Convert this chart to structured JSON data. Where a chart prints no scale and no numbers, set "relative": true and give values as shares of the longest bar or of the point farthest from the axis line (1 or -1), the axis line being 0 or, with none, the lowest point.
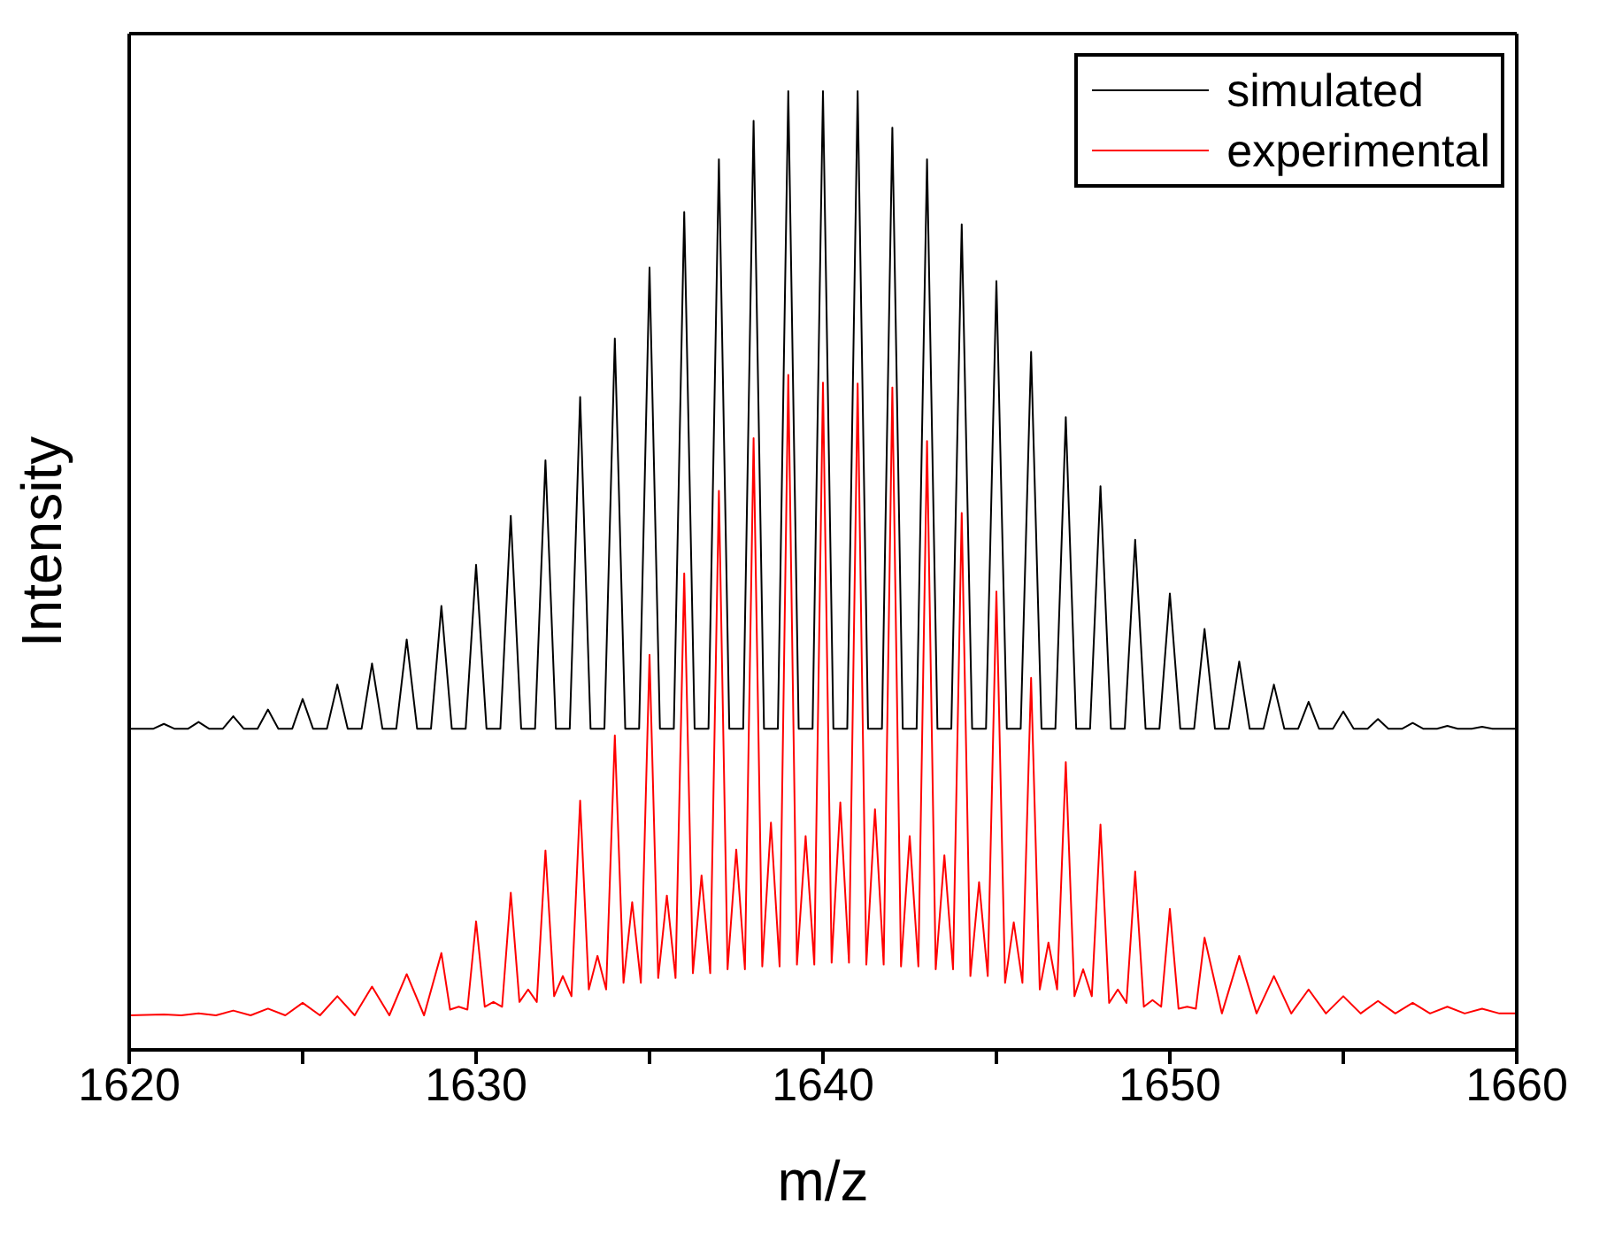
{
  "chart_data": {
    "type": "line",
    "xlabel": "m/z",
    "ylabel": "Intensity",
    "relative": true,
    "xlim": [
      1620,
      1660
    ],
    "xticks": [
      1620,
      {
        "value": 1625,
        "label": null
      },
      1630,
      {
        "value": 1635,
        "label": null
      },
      1640,
      {
        "value": 1645,
        "label": null
      },
      1650,
      {
        "value": 1655,
        "label": null
      },
      1660
    ],
    "tick_labels": "x",
    "grid": false,
    "legend": "top right",
    "marker": "none",
    "line_style": "solid",
    "series": [
      {
        "name": "simulated",
        "color": "#000000",
        "x": [
          1620,
          1620.7,
          1621,
          1621.3,
          1621.7,
          1622,
          1622.3,
          1622.7,
          1623,
          1623.3,
          1623.7,
          1624,
          1624.3,
          1624.7,
          1625,
          1625.3,
          1625.7,
          1626,
          1626.3,
          1626.7,
          1627,
          1627.3,
          1627.7,
          1628,
          1628.3,
          1628.7,
          1629,
          1629.3,
          1629.7,
          1630,
          1630.3,
          1630.7,
          1631,
          1631.3,
          1631.7,
          1632,
          1632.3,
          1632.7,
          1633,
          1633.3,
          1633.7,
          1634,
          1634.3,
          1634.7,
          1635,
          1635.3,
          1635.7,
          1636,
          1636.3,
          1636.7,
          1637,
          1637.3,
          1637.7,
          1638,
          1638.3,
          1638.7,
          1639,
          1639.3,
          1639.7,
          1640,
          1640.3,
          1640.7,
          1641,
          1641.3,
          1641.7,
          1642,
          1642.3,
          1642.7,
          1643,
          1643.3,
          1643.7,
          1644,
          1644.3,
          1644.7,
          1645,
          1645.3,
          1645.7,
          1646,
          1646.3,
          1646.7,
          1647,
          1647.3,
          1647.7,
          1648,
          1648.3,
          1648.7,
          1649,
          1649.3,
          1649.7,
          1650,
          1650.3,
          1650.7,
          1651,
          1651.3,
          1651.7,
          1652,
          1652.3,
          1652.7,
          1653,
          1653.3,
          1653.7,
          1654,
          1654.3,
          1654.7,
          1655,
          1655.3,
          1655.7,
          1656,
          1656.3,
          1656.7,
          1657,
          1657.3,
          1657.7,
          1658,
          1658.3,
          1658.7,
          1659,
          1659.3,
          1660
        ],
        "values": [
          0.335,
          0.335,
          0.34,
          0.335,
          0.335,
          0.342,
          0.335,
          0.335,
          0.348,
          0.335,
          0.335,
          0.355,
          0.335,
          0.335,
          0.366,
          0.335,
          0.335,
          0.381,
          0.335,
          0.335,
          0.403,
          0.335,
          0.335,
          0.428,
          0.335,
          0.335,
          0.463,
          0.335,
          0.335,
          0.506,
          0.335,
          0.335,
          0.557,
          0.335,
          0.335,
          0.615,
          0.335,
          0.335,
          0.681,
          0.335,
          0.335,
          0.742,
          0.335,
          0.335,
          0.816,
          0.335,
          0.335,
          0.874,
          0.335,
          0.335,
          0.929,
          0.335,
          0.335,
          0.969,
          0.335,
          0.335,
          1.0,
          0.335,
          0.335,
          1.0,
          0.335,
          0.335,
          1.0,
          0.335,
          0.335,
          0.962,
          0.335,
          0.335,
          0.929,
          0.335,
          0.335,
          0.861,
          0.335,
          0.335,
          0.802,
          0.335,
          0.335,
          0.728,
          0.335,
          0.335,
          0.66,
          0.335,
          0.335,
          0.588,
          0.335,
          0.335,
          0.532,
          0.335,
          0.335,
          0.476,
          0.335,
          0.335,
          0.439,
          0.335,
          0.335,
          0.405,
          0.335,
          0.335,
          0.381,
          0.335,
          0.335,
          0.363,
          0.335,
          0.335,
          0.353,
          0.335,
          0.335,
          0.345,
          0.335,
          0.335,
          0.341,
          0.335,
          0.335,
          0.338,
          0.335,
          0.335,
          0.337,
          0.335,
          0.335
        ]
      },
      {
        "name": "experimental",
        "color": "#ff0000",
        "x": [
          1620,
          1621,
          1621.5,
          1622,
          1622.5,
          1623,
          1623.5,
          1624,
          1624.5,
          1625,
          1625.5,
          1626,
          1626.5,
          1627,
          1627.5,
          1628,
          1628.5,
          1629,
          1629.25,
          1629.5,
          1629.75,
          1630,
          1630.25,
          1630.5,
          1630.75,
          1631,
          1631.25,
          1631.5,
          1631.75,
          1632,
          1632.25,
          1632.5,
          1632.75,
          1633,
          1633.25,
          1633.5,
          1633.75,
          1634,
          1634.25,
          1634.5,
          1634.75,
          1635,
          1635.25,
          1635.5,
          1635.75,
          1636,
          1636.25,
          1636.5,
          1636.75,
          1637,
          1637.25,
          1637.5,
          1637.75,
          1638,
          1638.25,
          1638.5,
          1638.75,
          1639,
          1639.25,
          1639.5,
          1639.75,
          1640,
          1640.25,
          1640.5,
          1640.75,
          1641,
          1641.25,
          1641.5,
          1641.75,
          1642,
          1642.25,
          1642.5,
          1642.75,
          1643,
          1643.25,
          1643.5,
          1643.75,
          1644,
          1644.25,
          1644.5,
          1644.75,
          1645,
          1645.25,
          1645.5,
          1645.75,
          1646,
          1646.25,
          1646.5,
          1646.75,
          1647,
          1647.25,
          1647.5,
          1647.75,
          1648,
          1648.25,
          1648.5,
          1648.75,
          1649,
          1649.25,
          1649.5,
          1649.75,
          1650,
          1650.25,
          1650.5,
          1650.75,
          1651,
          1651.5,
          1652,
          1652.5,
          1653,
          1653.5,
          1654,
          1654.5,
          1655,
          1655.5,
          1656,
          1656.5,
          1657,
          1657.5,
          1658,
          1658.5,
          1659,
          1659.5,
          1660
        ],
        "values": [
          0.036,
          0.037,
          0.036,
          0.038,
          0.036,
          0.041,
          0.036,
          0.043,
          0.036,
          0.049,
          0.036,
          0.056,
          0.036,
          0.066,
          0.036,
          0.079,
          0.036,
          0.101,
          0.042,
          0.045,
          0.042,
          0.134,
          0.045,
          0.05,
          0.045,
          0.164,
          0.05,
          0.063,
          0.05,
          0.208,
          0.056,
          0.077,
          0.056,
          0.26,
          0.063,
          0.098,
          0.063,
          0.328,
          0.07,
          0.154,
          0.07,
          0.412,
          0.075,
          0.161,
          0.075,
          0.497,
          0.08,
          0.182,
          0.08,
          0.583,
          0.084,
          0.209,
          0.084,
          0.638,
          0.087,
          0.237,
          0.087,
          0.704,
          0.089,
          0.223,
          0.089,
          0.696,
          0.091,
          0.258,
          0.091,
          0.695,
          0.089,
          0.251,
          0.089,
          0.691,
          0.087,
          0.223,
          0.087,
          0.635,
          0.084,
          0.203,
          0.084,
          0.56,
          0.077,
          0.175,
          0.077,
          0.478,
          0.07,
          0.133,
          0.07,
          0.388,
          0.063,
          0.112,
          0.063,
          0.3,
          0.056,
          0.084,
          0.056,
          0.235,
          0.049,
          0.063,
          0.049,
          0.186,
          0.045,
          0.052,
          0.045,
          0.147,
          0.043,
          0.045,
          0.043,
          0.117,
          0.038,
          0.098,
          0.038,
          0.077,
          0.038,
          0.063,
          0.038,
          0.056,
          0.038,
          0.051,
          0.038,
          0.049,
          0.038,
          0.045,
          0.038,
          0.043,
          0.038,
          0.038
        ]
      }
    ]
  }
}
